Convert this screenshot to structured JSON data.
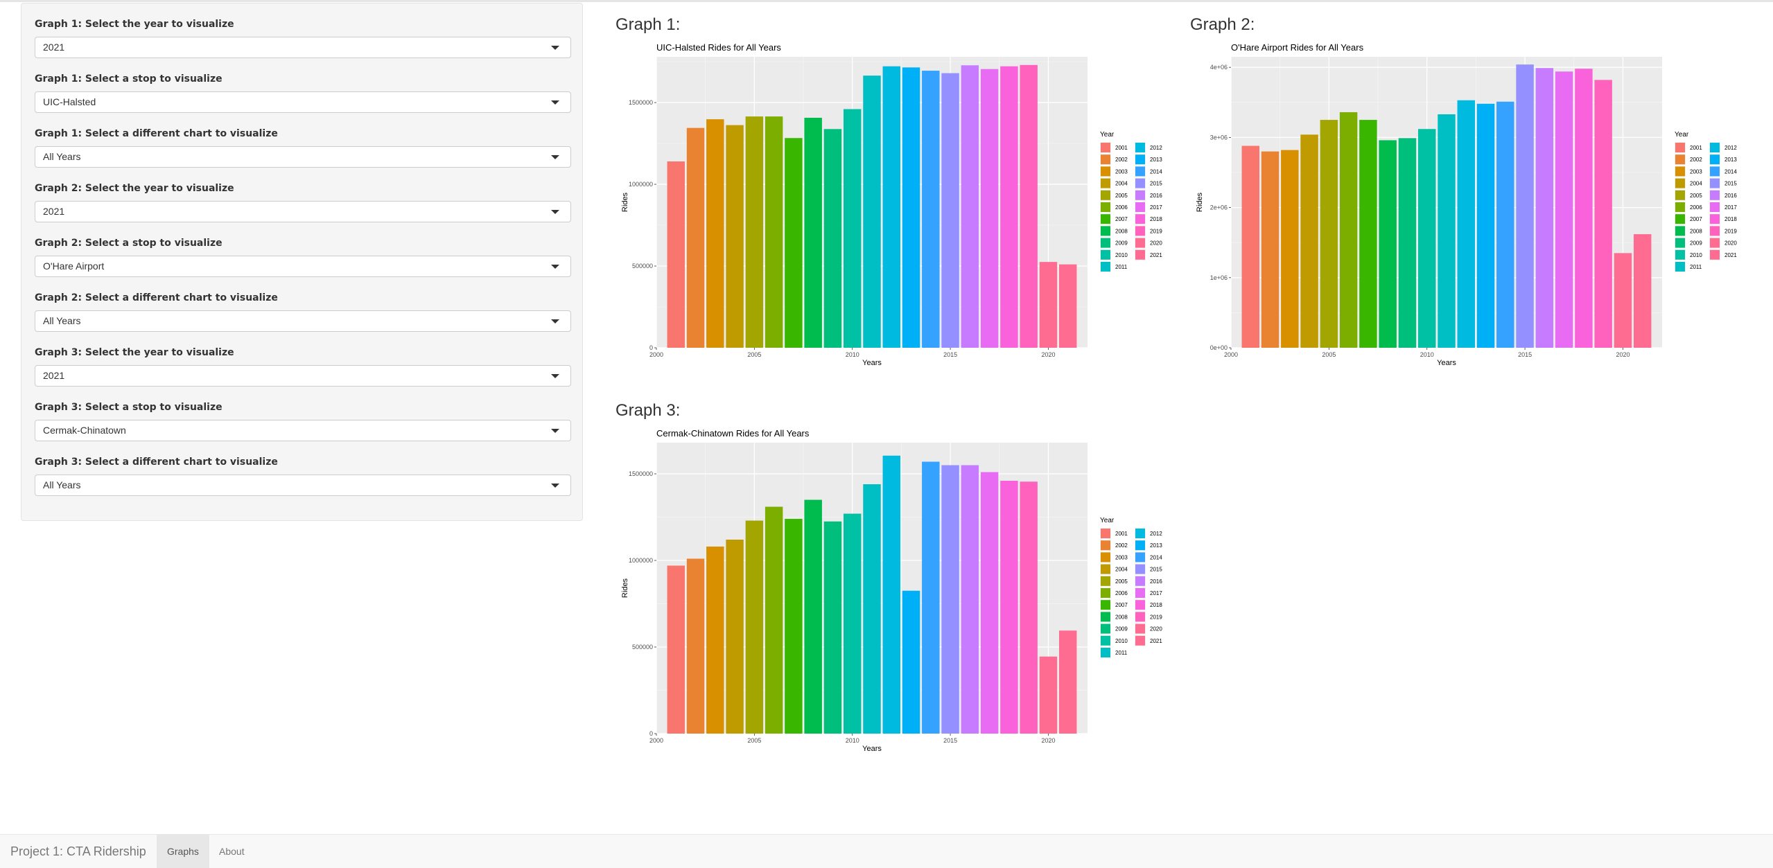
{
  "sidebar": {
    "controls": [
      {
        "label": "Graph 1: Select the year to visualize",
        "value": "2021"
      },
      {
        "label": "Graph 1: Select a stop to visualize",
        "value": "UIC-Halsted"
      },
      {
        "label": "Graph 1: Select a different chart to visualize",
        "value": "All Years"
      },
      {
        "label": "Graph 2: Select the year to visualize",
        "value": "2021"
      },
      {
        "label": "Graph 2: Select a stop to visualize",
        "value": "O'Hare Airport"
      },
      {
        "label": "Graph 2: Select a different chart to visualize",
        "value": "All Years"
      },
      {
        "label": "Graph 3: Select the year to visualize",
        "value": "2021"
      },
      {
        "label": "Graph 3: Select a stop to visualize",
        "value": "Cermak-Chinatown"
      },
      {
        "label": "Graph 3: Select a different chart to visualize",
        "value": "All Years"
      }
    ]
  },
  "graphs": [
    {
      "heading": "Graph 1:"
    },
    {
      "heading": "Graph 2:"
    },
    {
      "heading": "Graph 3:"
    }
  ],
  "colors": {
    "panel_bg": "#ebebeb",
    "year_palette": [
      "#F8766D",
      "#EA8331",
      "#D89000",
      "#C09B00",
      "#A3A500",
      "#7CAE00",
      "#39B600",
      "#00BB4E",
      "#00BF7D",
      "#00C1A3",
      "#00BFC4",
      "#00BAE0",
      "#00B0F6",
      "#35A2FF",
      "#9590FF",
      "#C77CFF",
      "#E76BF3",
      "#FA62DB",
      "#FF62BC",
      "#FF6C91",
      "#FF6C91"
    ]
  },
  "chart_data": [
    {
      "type": "bar",
      "title": "UIC-Halsted Rides for All Years",
      "xlabel": "Years",
      "ylabel": "Rides",
      "legend_title": "Year",
      "legend_placement": "right",
      "x": [
        2001,
        2002,
        2003,
        2004,
        2005,
        2006,
        2007,
        2008,
        2009,
        2010,
        2011,
        2012,
        2013,
        2014,
        2015,
        2016,
        2017,
        2018,
        2019,
        2020,
        2021
      ],
      "values": [
        1140000,
        1345000,
        1398000,
        1362000,
        1415000,
        1415000,
        1283000,
        1407000,
        1338000,
        1460000,
        1665000,
        1722000,
        1715000,
        1695000,
        1680000,
        1728000,
        1705000,
        1722000,
        1730000,
        525000,
        510000
      ],
      "xlim": [
        2000,
        2022
      ],
      "ylim": [
        0,
        1780000
      ],
      "x_ticks": [
        "2000",
        "2005",
        "2010",
        "2015",
        "2020"
      ],
      "x_tick_values": [
        2000,
        2005,
        2010,
        2015,
        2020
      ],
      "y_ticks": [
        "0",
        "500000",
        "1000000",
        "1500000"
      ],
      "y_tick_values": [
        0,
        500000,
        1000000,
        1500000
      ],
      "legend": [
        "2001",
        "2002",
        "2003",
        "2004",
        "2005",
        "2006",
        "2007",
        "2008",
        "2009",
        "2010",
        "2011",
        "2012",
        "2013",
        "2014",
        "2015",
        "2016",
        "2017",
        "2018",
        "2019",
        "2020",
        "2021"
      ],
      "grid": true
    },
    {
      "type": "bar",
      "title": "O'Hare Airport Rides for All Years",
      "xlabel": "Years",
      "ylabel": "Rides",
      "legend_title": "Year",
      "legend_placement": "right",
      "x": [
        2001,
        2002,
        2003,
        2004,
        2005,
        2006,
        2007,
        2008,
        2009,
        2010,
        2011,
        2012,
        2013,
        2014,
        2015,
        2016,
        2017,
        2018,
        2019,
        2020,
        2021
      ],
      "values": [
        2880000,
        2800000,
        2820000,
        3040000,
        3250000,
        3360000,
        3250000,
        2960000,
        2990000,
        3120000,
        3330000,
        3530000,
        3480000,
        3510000,
        4040000,
        3990000,
        3940000,
        3980000,
        3820000,
        1350000,
        1620000
      ],
      "xlim": [
        2000,
        2022
      ],
      "ylim": [
        0,
        4150000
      ],
      "x_ticks": [
        "2000",
        "2005",
        "2010",
        "2015",
        "2020"
      ],
      "x_tick_values": [
        2000,
        2005,
        2010,
        2015,
        2020
      ],
      "y_ticks": [
        "0e+00",
        "1e+06",
        "2e+06",
        "3e+06",
        "4e+06"
      ],
      "y_tick_values": [
        0,
        1000000,
        2000000,
        3000000,
        4000000
      ],
      "legend": [
        "2001",
        "2002",
        "2003",
        "2004",
        "2005",
        "2006",
        "2007",
        "2008",
        "2009",
        "2010",
        "2011",
        "2012",
        "2013",
        "2014",
        "2015",
        "2016",
        "2017",
        "2018",
        "2019",
        "2020",
        "2021"
      ],
      "grid": true
    },
    {
      "type": "bar",
      "title": "Cermak-Chinatown Rides for All Years",
      "xlabel": "Years",
      "ylabel": "Rides",
      "legend_title": "Year",
      "legend_placement": "right",
      "x": [
        2001,
        2002,
        2003,
        2004,
        2005,
        2006,
        2007,
        2008,
        2009,
        2010,
        2011,
        2012,
        2013,
        2014,
        2015,
        2016,
        2017,
        2018,
        2019,
        2020,
        2021
      ],
      "values": [
        970000,
        1010000,
        1080000,
        1120000,
        1230000,
        1310000,
        1240000,
        1350000,
        1225000,
        1270000,
        1440000,
        1605000,
        825000,
        1570000,
        1550000,
        1550000,
        1510000,
        1460000,
        1455000,
        445000,
        595000
      ],
      "xlim": [
        2000,
        2022
      ],
      "ylim": [
        0,
        1680000
      ],
      "x_ticks": [
        "2000",
        "2005",
        "2010",
        "2015",
        "2020"
      ],
      "x_tick_values": [
        2000,
        2005,
        2010,
        2015,
        2020
      ],
      "y_ticks": [
        "0",
        "500000",
        "1000000",
        "1500000"
      ],
      "y_tick_values": [
        0,
        500000,
        1000000,
        1500000
      ],
      "legend": [
        "2001",
        "2002",
        "2003",
        "2004",
        "2005",
        "2006",
        "2007",
        "2008",
        "2009",
        "2010",
        "2011",
        "2012",
        "2013",
        "2014",
        "2015",
        "2016",
        "2017",
        "2018",
        "2019",
        "2020",
        "2021"
      ],
      "grid": true
    }
  ],
  "navbar": {
    "brand": "Project 1: CTA Ridership",
    "tabs": [
      "Graphs",
      "About"
    ]
  }
}
